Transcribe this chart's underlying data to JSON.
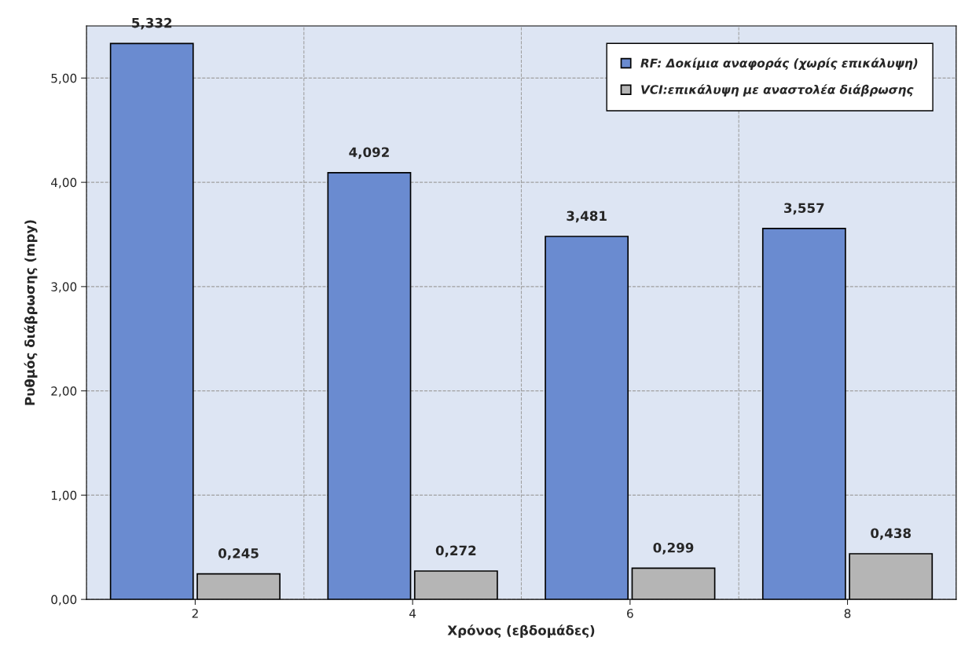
{
  "chart_data": {
    "type": "bar",
    "xlabel": "Χρόνος (εβδομάδες)",
    "ylabel": "Ρυθμός διάβρωσης (mpy)",
    "categories": [
      "2",
      "4",
      "6",
      "8"
    ],
    "series": [
      {
        "name": "RF: Δοκίμια αναφοράς (χωρίς επικάλυψη)",
        "color": "#6a8bd0",
        "values": [
          5.332,
          4.092,
          3.481,
          3.557
        ],
        "value_labels": [
          "5,332",
          "4,092",
          "3,481",
          "3,557"
        ]
      },
      {
        "name": "VCI:επικάλυψη με αναστολέα διάβρωσης",
        "color": "#b5b5b5",
        "values": [
          0.245,
          0.272,
          0.299,
          0.438
        ],
        "value_labels": [
          "0,245",
          "0,272",
          "0,299",
          "0,438"
        ]
      }
    ],
    "ylim": [
      0,
      5.5
    ],
    "yticks": [
      {
        "value": 0,
        "label": "0,00"
      },
      {
        "value": 1,
        "label": "1,00"
      },
      {
        "value": 2,
        "label": "2,00"
      },
      {
        "value": 3,
        "label": "3,00"
      },
      {
        "value": 4,
        "label": "4,00"
      },
      {
        "value": 5,
        "label": "5,00"
      }
    ],
    "grid": true,
    "legend": "top right"
  }
}
